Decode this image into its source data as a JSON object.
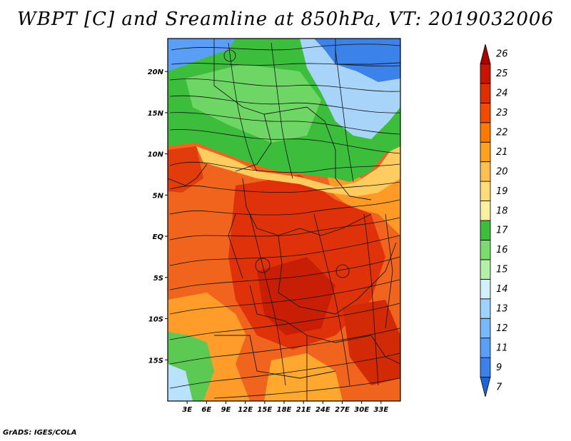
{
  "title": "WBPT [C] and Sreamline at 850hPa, VT: 2019032006",
  "footer": "GrADS: IGES/COLA",
  "map": {
    "region": "Central Africa",
    "lon_range": [
      0,
      36
    ],
    "lat_range": [
      -20,
      24
    ],
    "lon_ticks": [
      "3E",
      "6E",
      "9E",
      "12E",
      "15E",
      "18E",
      "21E",
      "24E",
      "27E",
      "30E",
      "33E"
    ],
    "lat_ticks": [
      "20N",
      "15N",
      "10N",
      "5N",
      "EQ",
      "5S",
      "10S",
      "15S"
    ],
    "lon_values": [
      3,
      6,
      9,
      12,
      15,
      18,
      21,
      24,
      27,
      30,
      33
    ],
    "lat_values": [
      20,
      15,
      10,
      5,
      0,
      -5,
      -10,
      -15
    ]
  },
  "colorbar": {
    "labels": [
      "7",
      "9",
      "11",
      "12",
      "13",
      "14",
      "15",
      "16",
      "17",
      "18",
      "19",
      "20",
      "21",
      "22",
      "23",
      "24",
      "25",
      "26"
    ],
    "colors": [
      "#1e64dc",
      "#3c82eb",
      "#5a9ff5",
      "#78b9fa",
      "#a0d2ff",
      "#d2f0ff",
      "#b4f0aa",
      "#78dc6e",
      "#3cbe3c",
      "#fff0a0",
      "#ffdc78",
      "#ffc050",
      "#ffa01e",
      "#ff7800",
      "#f54b00",
      "#e12d00",
      "#c81400",
      "#aa0000"
    ]
  }
}
